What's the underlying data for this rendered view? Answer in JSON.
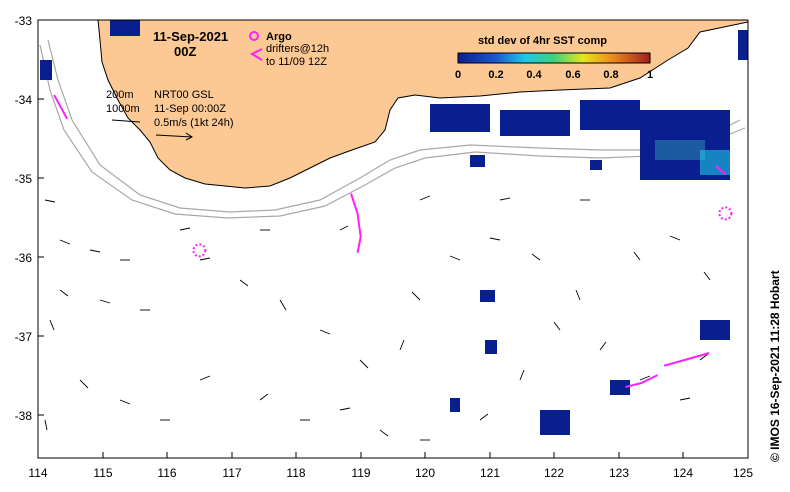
{
  "map": {
    "date_title": "11-Sep-2021",
    "time_title": "00Z",
    "argo_label": "Argo",
    "drifters_label_1": "drifters@12h",
    "drifters_label_2": "to 11/09 12Z",
    "isobath_200": "200m",
    "isobath_1000": "1000m",
    "product_line_1": "NRT00 GSL",
    "product_line_2": "11-Sep 00:00Z",
    "vector_scale_label": "0.5m/s (1kt 24h)",
    "colorbar_title": "std dev of 4hr SST comp",
    "colorbar_ticks": [
      "0",
      "0.2",
      "0.4",
      "0.6",
      "0.8",
      "1"
    ],
    "credit": "© IMOS 16-Sep-2021 11:28 Hobart",
    "lon_ticks": [
      "114",
      "115",
      "116",
      "117",
      "118",
      "119",
      "120",
      "121",
      "122",
      "123",
      "124",
      "125"
    ],
    "lat_ticks": [
      "-33",
      "-34",
      "-35",
      "-36",
      "-37",
      "-38"
    ],
    "lon_range": [
      114,
      125
    ],
    "lat_range": [
      -38.55,
      -33
    ],
    "colors": {
      "land": "#fcc894",
      "coast": "#000000",
      "isobath": "#a8a8a8",
      "argo": "#ff1fff",
      "drifter": "#ff1fff",
      "sst_low": "#0a1f8f",
      "sst_mid": "#1ec8e6",
      "sst_high": "#e61e1e"
    },
    "argo_floats": [
      {
        "lon": 116.5,
        "lat": -35.92
      },
      {
        "lon": 124.65,
        "lat": -35.45
      }
    ],
    "drifter_tracks": [
      [
        [
          114.25,
          -33.95
        ],
        [
          114.35,
          -34.1
        ],
        [
          114.45,
          -34.25
        ]
      ],
      [
        [
          118.85,
          -35.2
        ],
        [
          118.95,
          -35.45
        ],
        [
          119.0,
          -35.75
        ],
        [
          118.95,
          -35.95
        ]
      ],
      [
        [
          123.1,
          -37.65
        ],
        [
          123.35,
          -37.6
        ],
        [
          123.6,
          -37.5
        ]
      ],
      [
        [
          123.7,
          -37.38
        ],
        [
          124.05,
          -37.3
        ],
        [
          124.4,
          -37.22
        ]
      ],
      [
        [
          124.5,
          -34.85
        ],
        [
          124.65,
          -34.95
        ]
      ]
    ]
  }
}
